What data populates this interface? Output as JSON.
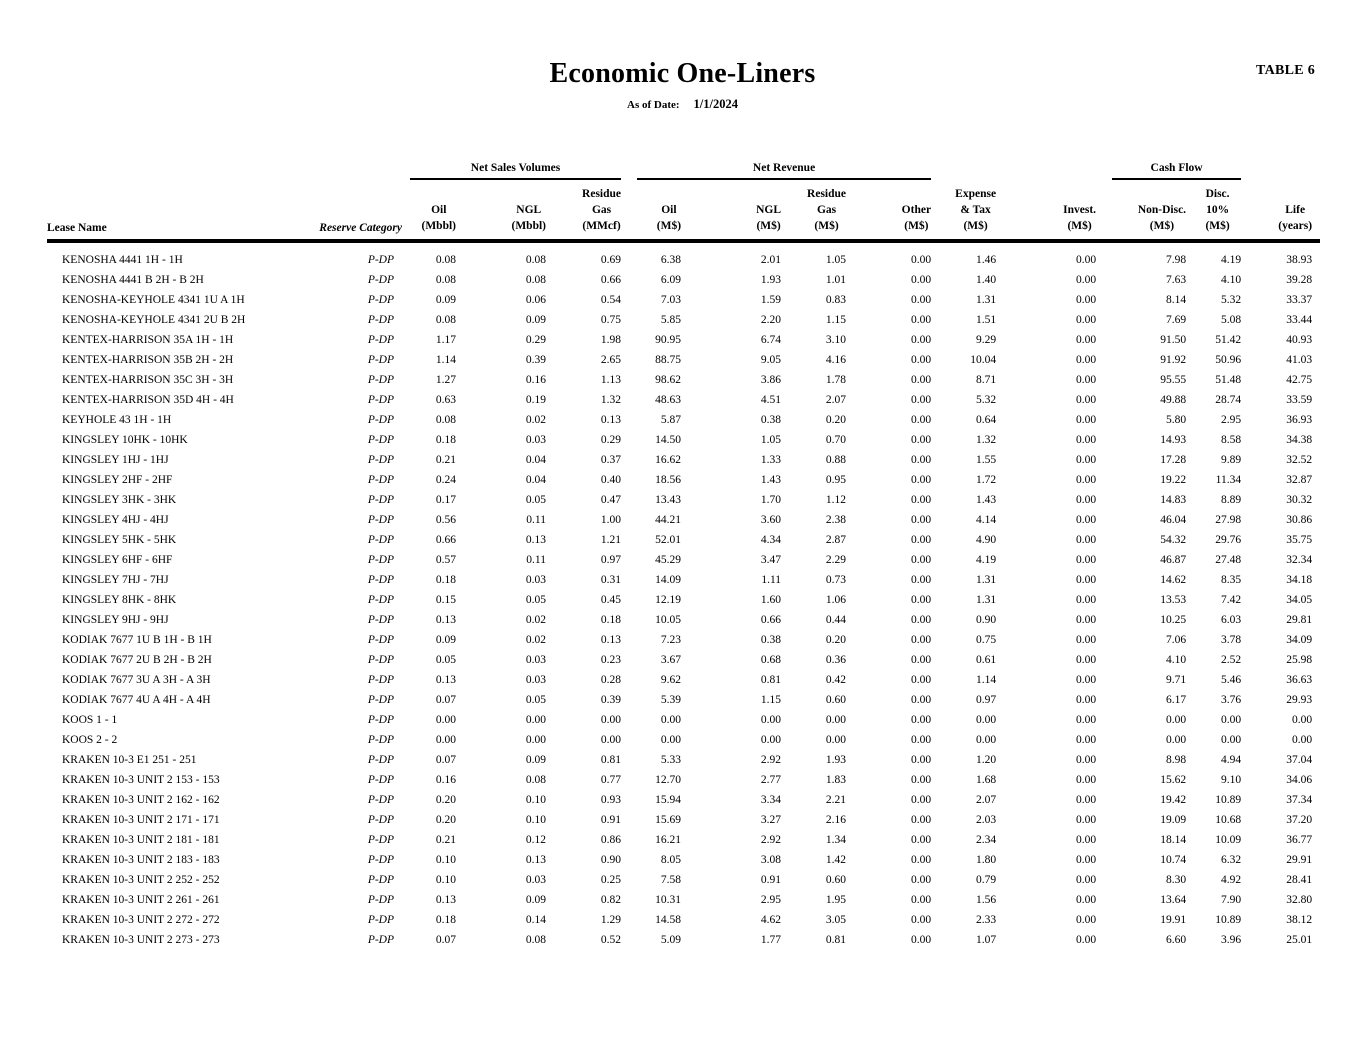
{
  "page": {
    "table_label": "TABLE 6",
    "title": "Economic One-Liners",
    "as_of_label": "As of Date:",
    "as_of_date": "1/1/2024"
  },
  "table": {
    "groups": {
      "net_sales": "Net Sales Volumes",
      "net_revenue": "Net Revenue",
      "cash_flow": "Cash Flow"
    },
    "columns": [
      {
        "key": "lease-name",
        "label": "Lease Name"
      },
      {
        "key": "reserve-category",
        "label": "Reserve Category"
      },
      {
        "key": "oil-volume-mbbl",
        "label": "Oil\n(Mbbl)"
      },
      {
        "key": "ngl-volume-mbbl",
        "label": "NGL\n(Mbbl)"
      },
      {
        "key": "residue-gas-volume-mmcf",
        "label": "Residue\nGas\n(MMcf)"
      },
      {
        "key": "oil-revenue-ms",
        "label": "Oil\n(M$)"
      },
      {
        "key": "ngl-revenue-ms",
        "label": "NGL\n(M$)"
      },
      {
        "key": "residue-gas-revenue-ms",
        "label": "Residue\nGas\n(M$)"
      },
      {
        "key": "other-revenue-ms",
        "label": "Other\n(M$)"
      },
      {
        "key": "expense-tax-ms",
        "label": "Expense\n& Tax\n(M$)"
      },
      {
        "key": "invest-ms",
        "label": "Invest.\n(M$)"
      },
      {
        "key": "cashflow-nondisc-ms",
        "label": "Non-Disc.\n(M$)"
      },
      {
        "key": "cashflow-disc10-ms",
        "label": "Disc. 10%\n(M$)"
      },
      {
        "key": "life-years",
        "label": "Life\n(years)"
      }
    ],
    "rows": [
      [
        "KENOSHA 4441 1H - 1H",
        "P-DP",
        "0.08",
        "0.08",
        "0.69",
        "6.38",
        "2.01",
        "1.05",
        "0.00",
        "1.46",
        "0.00",
        "7.98",
        "4.19",
        "38.93"
      ],
      [
        "KENOSHA 4441 B 2H - B 2H",
        "P-DP",
        "0.08",
        "0.08",
        "0.66",
        "6.09",
        "1.93",
        "1.01",
        "0.00",
        "1.40",
        "0.00",
        "7.63",
        "4.10",
        "39.28"
      ],
      [
        "KENOSHA-KEYHOLE 4341 1U A 1H",
        "P-DP",
        "0.09",
        "0.06",
        "0.54",
        "7.03",
        "1.59",
        "0.83",
        "0.00",
        "1.31",
        "0.00",
        "8.14",
        "5.32",
        "33.37"
      ],
      [
        "KENOSHA-KEYHOLE 4341 2U B 2H",
        "P-DP",
        "0.08",
        "0.09",
        "0.75",
        "5.85",
        "2.20",
        "1.15",
        "0.00",
        "1.51",
        "0.00",
        "7.69",
        "5.08",
        "33.44"
      ],
      [
        "KENTEX-HARRISON 35A 1H - 1H",
        "P-DP",
        "1.17",
        "0.29",
        "1.98",
        "90.95",
        "6.74",
        "3.10",
        "0.00",
        "9.29",
        "0.00",
        "91.50",
        "51.42",
        "40.93"
      ],
      [
        "KENTEX-HARRISON 35B 2H - 2H",
        "P-DP",
        "1.14",
        "0.39",
        "2.65",
        "88.75",
        "9.05",
        "4.16",
        "0.00",
        "10.04",
        "0.00",
        "91.92",
        "50.96",
        "41.03"
      ],
      [
        "KENTEX-HARRISON 35C 3H - 3H",
        "P-DP",
        "1.27",
        "0.16",
        "1.13",
        "98.62",
        "3.86",
        "1.78",
        "0.00",
        "8.71",
        "0.00",
        "95.55",
        "51.48",
        "42.75"
      ],
      [
        "KENTEX-HARRISON 35D 4H - 4H",
        "P-DP",
        "0.63",
        "0.19",
        "1.32",
        "48.63",
        "4.51",
        "2.07",
        "0.00",
        "5.32",
        "0.00",
        "49.88",
        "28.74",
        "33.59"
      ],
      [
        "KEYHOLE 43 1H - 1H",
        "P-DP",
        "0.08",
        "0.02",
        "0.13",
        "5.87",
        "0.38",
        "0.20",
        "0.00",
        "0.64",
        "0.00",
        "5.80",
        "2.95",
        "36.93"
      ],
      [
        "KINGSLEY 10HK - 10HK",
        "P-DP",
        "0.18",
        "0.03",
        "0.29",
        "14.50",
        "1.05",
        "0.70",
        "0.00",
        "1.32",
        "0.00",
        "14.93",
        "8.58",
        "34.38"
      ],
      [
        "KINGSLEY 1HJ - 1HJ",
        "P-DP",
        "0.21",
        "0.04",
        "0.37",
        "16.62",
        "1.33",
        "0.88",
        "0.00",
        "1.55",
        "0.00",
        "17.28",
        "9.89",
        "32.52"
      ],
      [
        "KINGSLEY 2HF - 2HF",
        "P-DP",
        "0.24",
        "0.04",
        "0.40",
        "18.56",
        "1.43",
        "0.95",
        "0.00",
        "1.72",
        "0.00",
        "19.22",
        "11.34",
        "32.87"
      ],
      [
        "KINGSLEY 3HK - 3HK",
        "P-DP",
        "0.17",
        "0.05",
        "0.47",
        "13.43",
        "1.70",
        "1.12",
        "0.00",
        "1.43",
        "0.00",
        "14.83",
        "8.89",
        "30.32"
      ],
      [
        "KINGSLEY 4HJ - 4HJ",
        "P-DP",
        "0.56",
        "0.11",
        "1.00",
        "44.21",
        "3.60",
        "2.38",
        "0.00",
        "4.14",
        "0.00",
        "46.04",
        "27.98",
        "30.86"
      ],
      [
        "KINGSLEY 5HK - 5HK",
        "P-DP",
        "0.66",
        "0.13",
        "1.21",
        "52.01",
        "4.34",
        "2.87",
        "0.00",
        "4.90",
        "0.00",
        "54.32",
        "29.76",
        "35.75"
      ],
      [
        "KINGSLEY 6HF - 6HF",
        "P-DP",
        "0.57",
        "0.11",
        "0.97",
        "45.29",
        "3.47",
        "2.29",
        "0.00",
        "4.19",
        "0.00",
        "46.87",
        "27.48",
        "32.34"
      ],
      [
        "KINGSLEY 7HJ - 7HJ",
        "P-DP",
        "0.18",
        "0.03",
        "0.31",
        "14.09",
        "1.11",
        "0.73",
        "0.00",
        "1.31",
        "0.00",
        "14.62",
        "8.35",
        "34.18"
      ],
      [
        "KINGSLEY 8HK - 8HK",
        "P-DP",
        "0.15",
        "0.05",
        "0.45",
        "12.19",
        "1.60",
        "1.06",
        "0.00",
        "1.31",
        "0.00",
        "13.53",
        "7.42",
        "34.05"
      ],
      [
        "KINGSLEY 9HJ - 9HJ",
        "P-DP",
        "0.13",
        "0.02",
        "0.18",
        "10.05",
        "0.66",
        "0.44",
        "0.00",
        "0.90",
        "0.00",
        "10.25",
        "6.03",
        "29.81"
      ],
      [
        "KODIAK 7677 1U B 1H - B 1H",
        "P-DP",
        "0.09",
        "0.02",
        "0.13",
        "7.23",
        "0.38",
        "0.20",
        "0.00",
        "0.75",
        "0.00",
        "7.06",
        "3.78",
        "34.09"
      ],
      [
        "KODIAK 7677 2U B 2H - B 2H",
        "P-DP",
        "0.05",
        "0.03",
        "0.23",
        "3.67",
        "0.68",
        "0.36",
        "0.00",
        "0.61",
        "0.00",
        "4.10",
        "2.52",
        "25.98"
      ],
      [
        "KODIAK 7677 3U A 3H - A 3H",
        "P-DP",
        "0.13",
        "0.03",
        "0.28",
        "9.62",
        "0.81",
        "0.42",
        "0.00",
        "1.14",
        "0.00",
        "9.71",
        "5.46",
        "36.63"
      ],
      [
        "KODIAK 7677 4U A 4H - A 4H",
        "P-DP",
        "0.07",
        "0.05",
        "0.39",
        "5.39",
        "1.15",
        "0.60",
        "0.00",
        "0.97",
        "0.00",
        "6.17",
        "3.76",
        "29.93"
      ],
      [
        "KOOS 1 - 1",
        "P-DP",
        "0.00",
        "0.00",
        "0.00",
        "0.00",
        "0.00",
        "0.00",
        "0.00",
        "0.00",
        "0.00",
        "0.00",
        "0.00",
        "0.00"
      ],
      [
        "KOOS 2 - 2",
        "P-DP",
        "0.00",
        "0.00",
        "0.00",
        "0.00",
        "0.00",
        "0.00",
        "0.00",
        "0.00",
        "0.00",
        "0.00",
        "0.00",
        "0.00"
      ],
      [
        "KRAKEN 10-3 E1 251 - 251",
        "P-DP",
        "0.07",
        "0.09",
        "0.81",
        "5.33",
        "2.92",
        "1.93",
        "0.00",
        "1.20",
        "0.00",
        "8.98",
        "4.94",
        "37.04"
      ],
      [
        "KRAKEN 10-3 UNIT 2 153 - 153",
        "P-DP",
        "0.16",
        "0.08",
        "0.77",
        "12.70",
        "2.77",
        "1.83",
        "0.00",
        "1.68",
        "0.00",
        "15.62",
        "9.10",
        "34.06"
      ],
      [
        "KRAKEN 10-3 UNIT 2 162 - 162",
        "P-DP",
        "0.20",
        "0.10",
        "0.93",
        "15.94",
        "3.34",
        "2.21",
        "0.00",
        "2.07",
        "0.00",
        "19.42",
        "10.89",
        "37.34"
      ],
      [
        "KRAKEN 10-3 UNIT 2 171 - 171",
        "P-DP",
        "0.20",
        "0.10",
        "0.91",
        "15.69",
        "3.27",
        "2.16",
        "0.00",
        "2.03",
        "0.00",
        "19.09",
        "10.68",
        "37.20"
      ],
      [
        "KRAKEN 10-3 UNIT 2 181 - 181",
        "P-DP",
        "0.21",
        "0.12",
        "0.86",
        "16.21",
        "2.92",
        "1.34",
        "0.00",
        "2.34",
        "0.00",
        "18.14",
        "10.09",
        "36.77"
      ],
      [
        "KRAKEN 10-3 UNIT 2 183 - 183",
        "P-DP",
        "0.10",
        "0.13",
        "0.90",
        "8.05",
        "3.08",
        "1.42",
        "0.00",
        "1.80",
        "0.00",
        "10.74",
        "6.32",
        "29.91"
      ],
      [
        "KRAKEN 10-3 UNIT 2 252 - 252",
        "P-DP",
        "0.10",
        "0.03",
        "0.25",
        "7.58",
        "0.91",
        "0.60",
        "0.00",
        "0.79",
        "0.00",
        "8.30",
        "4.92",
        "28.41"
      ],
      [
        "KRAKEN 10-3 UNIT 2 261 - 261",
        "P-DP",
        "0.13",
        "0.09",
        "0.82",
        "10.31",
        "2.95",
        "1.95",
        "0.00",
        "1.56",
        "0.00",
        "13.64",
        "7.90",
        "32.80"
      ],
      [
        "KRAKEN 10-3 UNIT 2 272 - 272",
        "P-DP",
        "0.18",
        "0.14",
        "1.29",
        "14.58",
        "4.62",
        "3.05",
        "0.00",
        "2.33",
        "0.00",
        "19.91",
        "10.89",
        "38.12"
      ],
      [
        "KRAKEN 10-3 UNIT 2 273 - 273",
        "P-DP",
        "0.07",
        "0.08",
        "0.52",
        "5.09",
        "1.77",
        "0.81",
        "0.00",
        "1.07",
        "0.00",
        "6.60",
        "3.96",
        "25.01"
      ]
    ]
  }
}
